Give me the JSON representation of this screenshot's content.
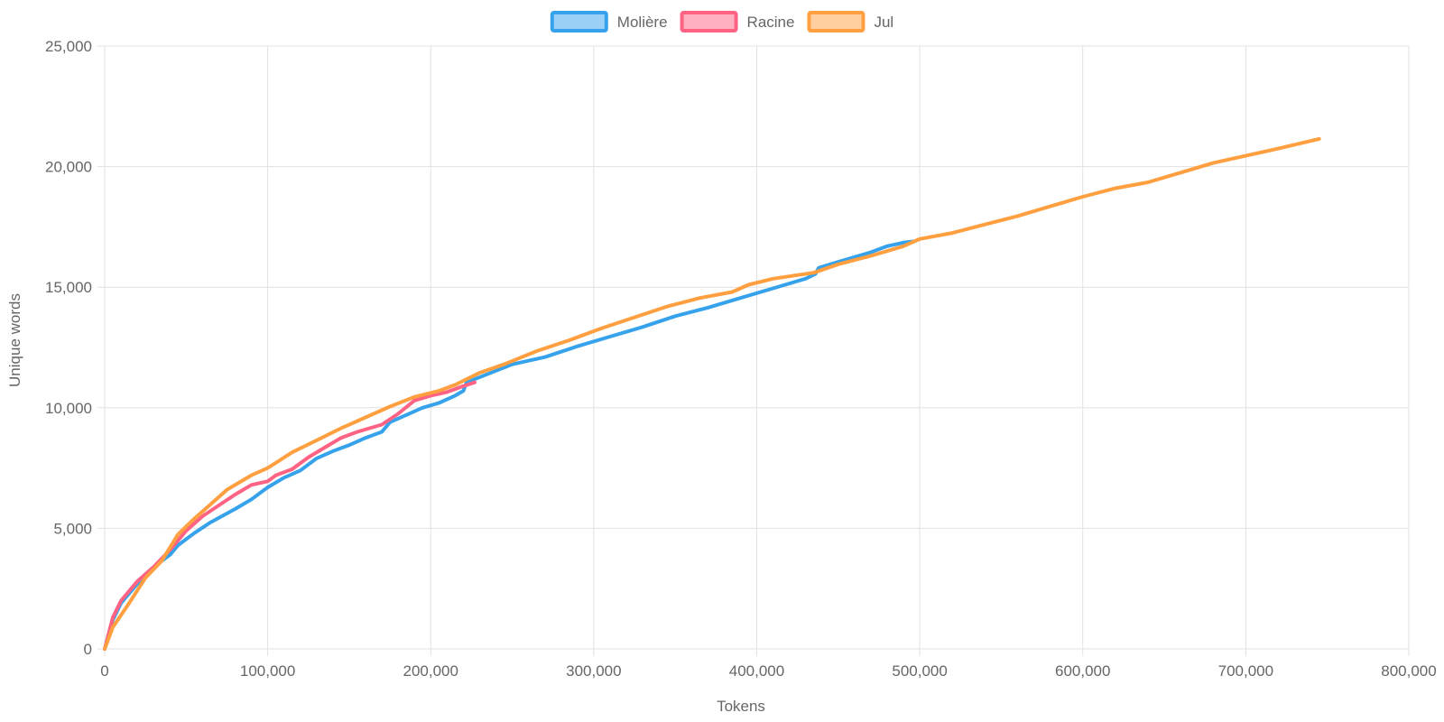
{
  "chart_data": {
    "type": "line",
    "title": "",
    "xlabel": "Tokens",
    "ylabel": "Unique words",
    "xlim": [
      0,
      800000
    ],
    "ylim": [
      0,
      25000
    ],
    "x_ticks": [
      0,
      100000,
      200000,
      300000,
      400000,
      500000,
      600000,
      700000,
      800000
    ],
    "x_tick_labels": [
      "0",
      "100,000",
      "200,000",
      "300,000",
      "400,000",
      "500,000",
      "600,000",
      "700,000",
      "800,000"
    ],
    "y_ticks": [
      0,
      5000,
      10000,
      15000,
      20000,
      25000
    ],
    "y_tick_labels": [
      "0",
      "5,000",
      "10,000",
      "15,000",
      "20,000",
      "25,000"
    ],
    "grid": true,
    "legend_position": "top",
    "series": [
      {
        "name": "Molière",
        "color": "#36a2eb",
        "fill": "#9ad0f5",
        "points": [
          [
            0,
            0
          ],
          [
            5000,
            1200
          ],
          [
            10000,
            1900
          ],
          [
            20000,
            2700
          ],
          [
            25000,
            3100
          ],
          [
            30000,
            3400
          ],
          [
            40000,
            3900
          ],
          [
            45000,
            4300
          ],
          [
            55000,
            4800
          ],
          [
            65000,
            5250
          ],
          [
            80000,
            5800
          ],
          [
            90000,
            6200
          ],
          [
            100000,
            6700
          ],
          [
            110000,
            7100
          ],
          [
            120000,
            7400
          ],
          [
            130000,
            7900
          ],
          [
            140000,
            8200
          ],
          [
            150000,
            8450
          ],
          [
            160000,
            8750
          ],
          [
            170000,
            9000
          ],
          [
            175000,
            9400
          ],
          [
            185000,
            9700
          ],
          [
            195000,
            10000
          ],
          [
            205000,
            10200
          ],
          [
            215000,
            10500
          ],
          [
            220000,
            10700
          ],
          [
            222000,
            11050
          ],
          [
            250000,
            11800
          ],
          [
            270000,
            12100
          ],
          [
            290000,
            12550
          ],
          [
            310000,
            12950
          ],
          [
            330000,
            13350
          ],
          [
            350000,
            13800
          ],
          [
            370000,
            14150
          ],
          [
            390000,
            14550
          ],
          [
            410000,
            14950
          ],
          [
            430000,
            15350
          ],
          [
            436000,
            15550
          ],
          [
            438000,
            15800
          ],
          [
            450000,
            16050
          ],
          [
            470000,
            16450
          ],
          [
            480000,
            16700
          ],
          [
            490000,
            16850
          ],
          [
            497000,
            16900
          ]
        ]
      },
      {
        "name": "Racine",
        "color": "#ff6384",
        "fill": "#ffb1c1",
        "points": [
          [
            0,
            0
          ],
          [
            5000,
            1300
          ],
          [
            10000,
            2000
          ],
          [
            20000,
            2800
          ],
          [
            30000,
            3400
          ],
          [
            40000,
            4100
          ],
          [
            50000,
            4900
          ],
          [
            60000,
            5500
          ],
          [
            70000,
            5950
          ],
          [
            80000,
            6400
          ],
          [
            90000,
            6800
          ],
          [
            100000,
            6950
          ],
          [
            105000,
            7200
          ],
          [
            115000,
            7450
          ],
          [
            125000,
            7950
          ],
          [
            135000,
            8350
          ],
          [
            145000,
            8750
          ],
          [
            155000,
            9000
          ],
          [
            170000,
            9300
          ],
          [
            180000,
            9750
          ],
          [
            190000,
            10300
          ],
          [
            200000,
            10500
          ],
          [
            210000,
            10650
          ],
          [
            220000,
            10900
          ],
          [
            227000,
            11050
          ]
        ]
      },
      {
        "name": "Jul",
        "color": "#ff9f40",
        "fill": "#ffcf9f",
        "points": [
          [
            0,
            0
          ],
          [
            5000,
            900
          ],
          [
            15000,
            1900
          ],
          [
            25000,
            2950
          ],
          [
            35000,
            3650
          ],
          [
            45000,
            4750
          ],
          [
            55000,
            5400
          ],
          [
            65000,
            6000
          ],
          [
            75000,
            6600
          ],
          [
            90000,
            7200
          ],
          [
            100000,
            7500
          ],
          [
            115000,
            8150
          ],
          [
            130000,
            8650
          ],
          [
            145000,
            9150
          ],
          [
            160000,
            9600
          ],
          [
            175000,
            10050
          ],
          [
            190000,
            10450
          ],
          [
            205000,
            10700
          ],
          [
            215000,
            10950
          ],
          [
            230000,
            11450
          ],
          [
            245000,
            11800
          ],
          [
            265000,
            12350
          ],
          [
            285000,
            12800
          ],
          [
            305000,
            13300
          ],
          [
            325000,
            13750
          ],
          [
            345000,
            14200
          ],
          [
            365000,
            14550
          ],
          [
            385000,
            14800
          ],
          [
            395000,
            15100
          ],
          [
            410000,
            15350
          ],
          [
            425000,
            15500
          ],
          [
            435000,
            15600
          ],
          [
            450000,
            15950
          ],
          [
            470000,
            16300
          ],
          [
            490000,
            16700
          ],
          [
            500000,
            17000
          ],
          [
            520000,
            17250
          ],
          [
            540000,
            17600
          ],
          [
            560000,
            17950
          ],
          [
            580000,
            18350
          ],
          [
            600000,
            18750
          ],
          [
            620000,
            19100
          ],
          [
            640000,
            19350
          ],
          [
            660000,
            19750
          ],
          [
            680000,
            20150
          ],
          [
            700000,
            20450
          ],
          [
            720000,
            20750
          ],
          [
            745000,
            21150
          ]
        ]
      }
    ]
  }
}
